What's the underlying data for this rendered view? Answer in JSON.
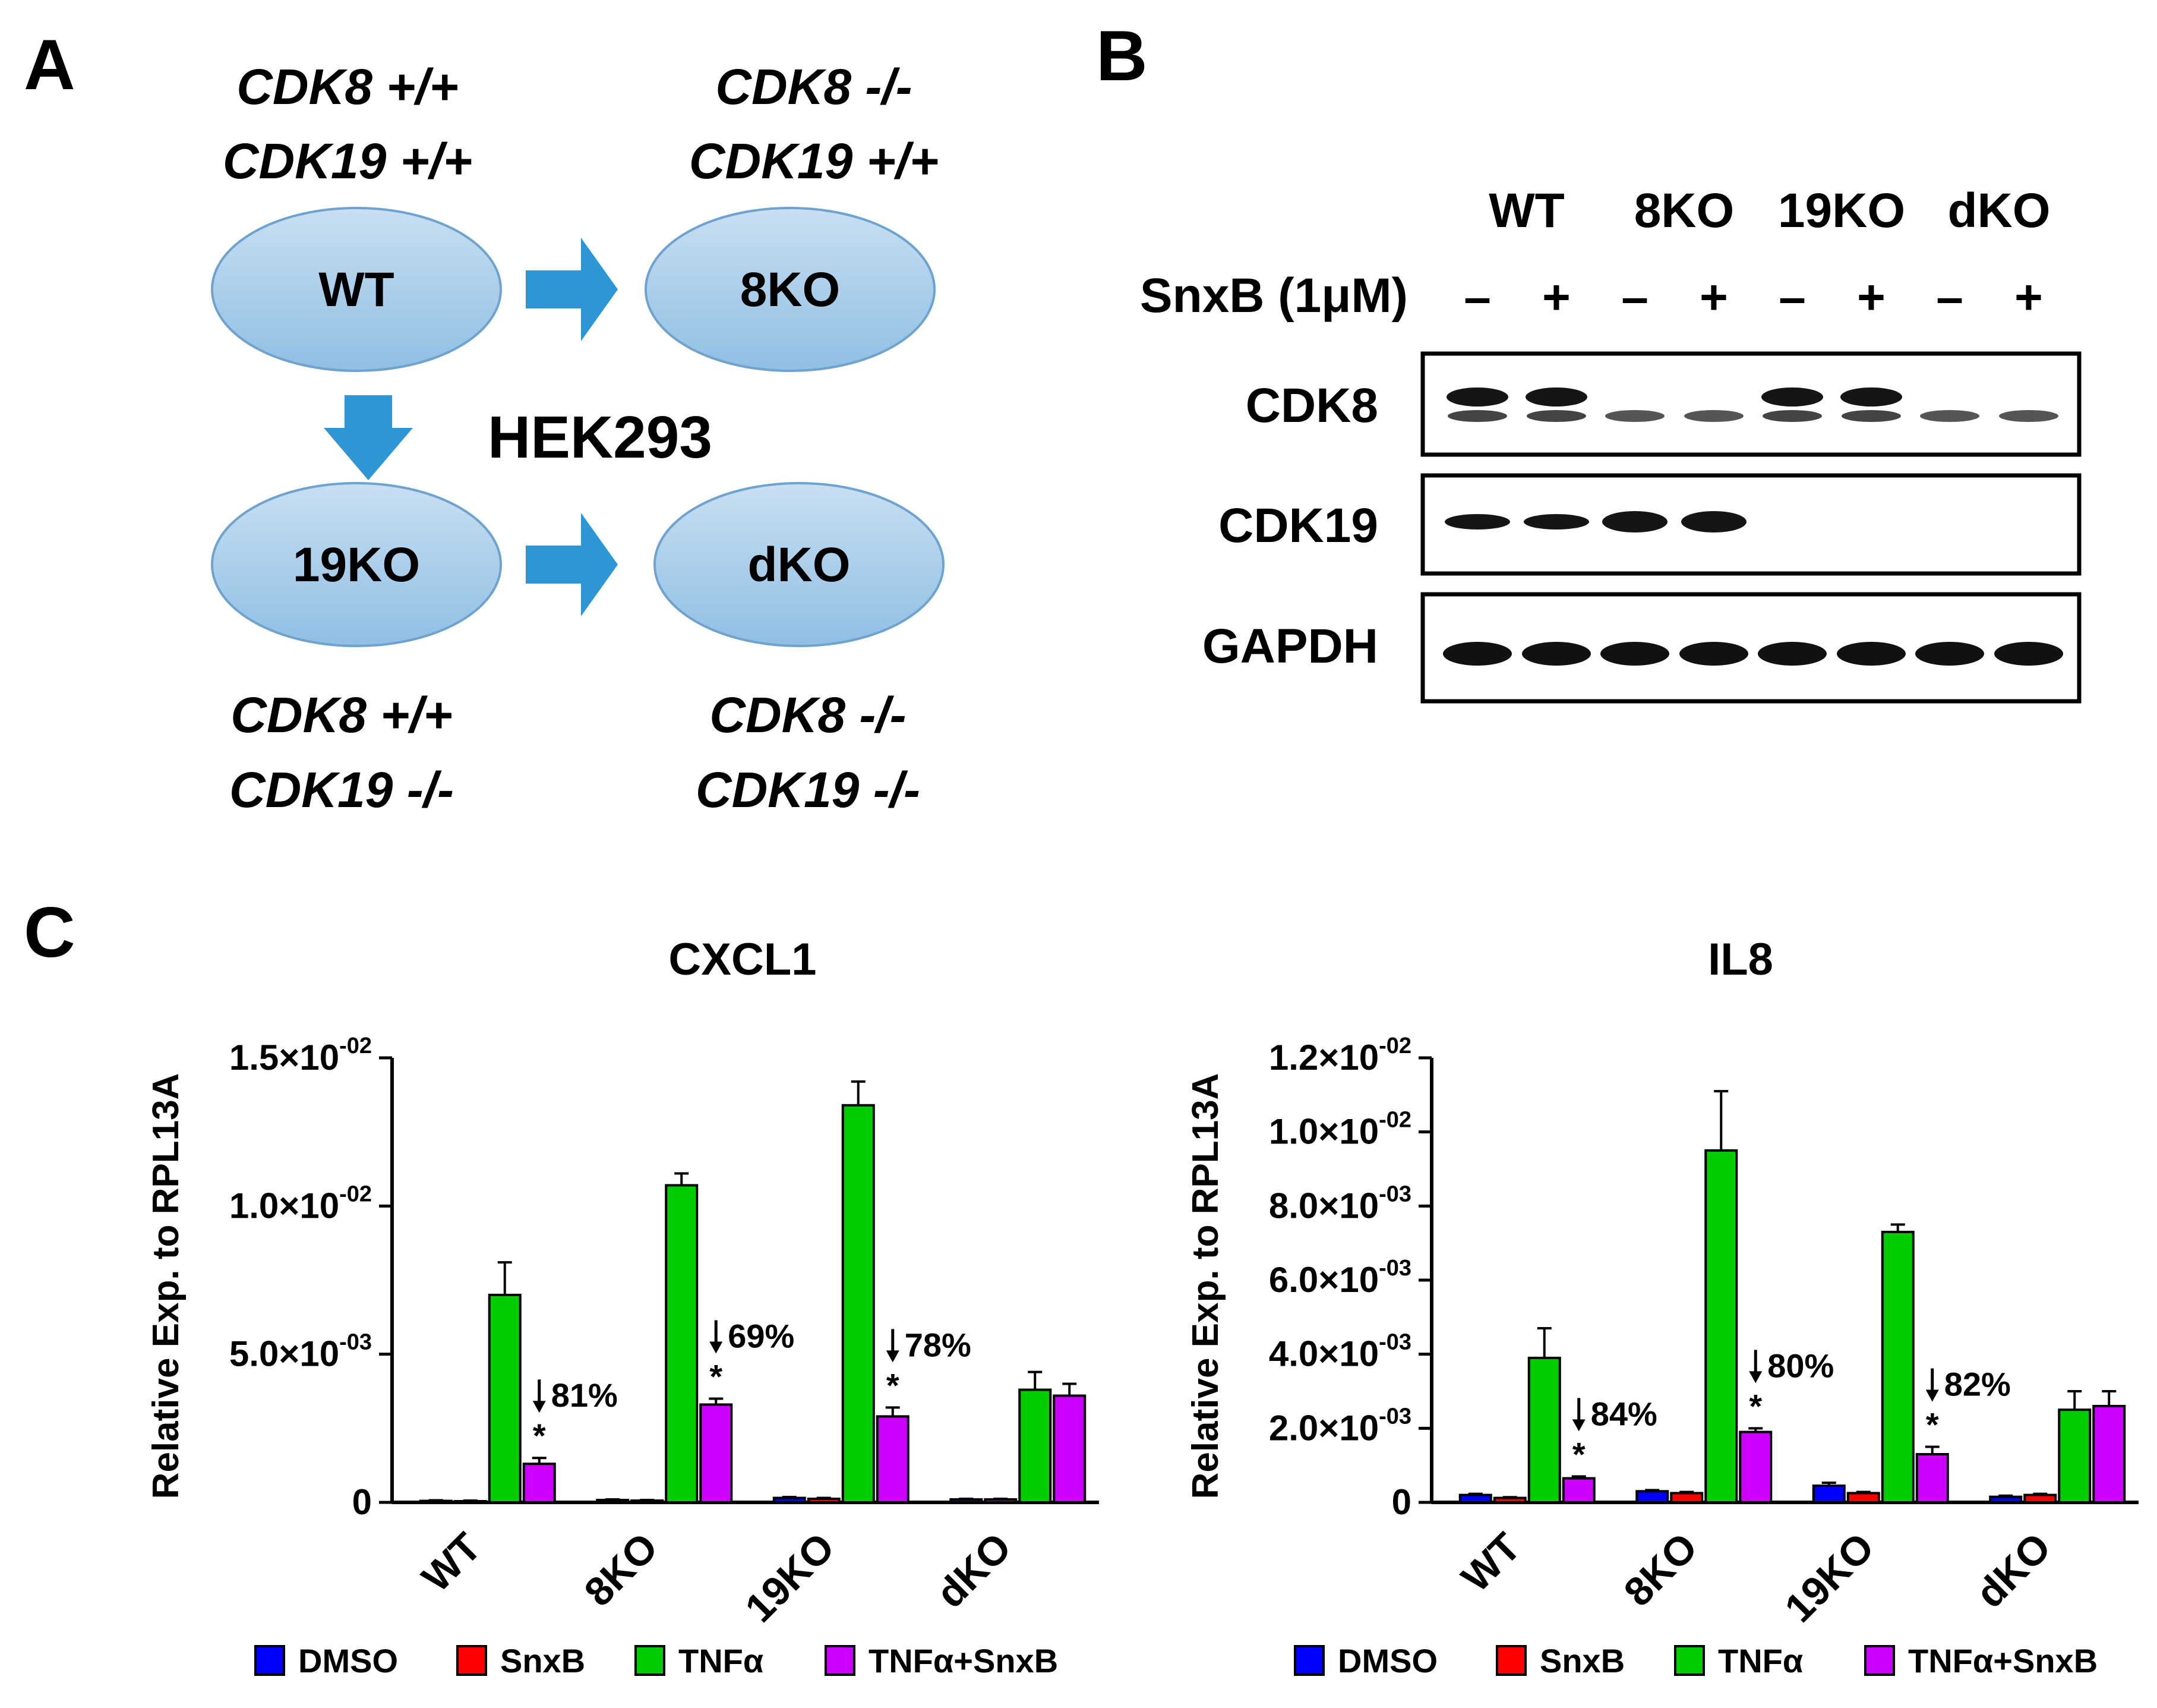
{
  "panel_a": {
    "label": "A",
    "center_label": "HEK293",
    "cells": [
      {
        "name": "WT",
        "cdk8": "CDK8 +/+",
        "cdk19": "CDK19 +/+"
      },
      {
        "name": "8KO",
        "cdk8": "CDK8 -/-",
        "cdk19": "CDK19 +/+"
      },
      {
        "name": "19KO",
        "cdk8": "CDK8 +/+",
        "cdk19": "CDK19 -/-"
      },
      {
        "name": "dKO",
        "cdk8": "CDK8 -/-",
        "cdk19": "CDK19 -/-"
      }
    ],
    "colors": {
      "ellipse_top": "#c9dff2",
      "ellipse_bottom": "#8fbfe4",
      "arrow": "#2f96d6"
    }
  },
  "panel_b": {
    "label": "B",
    "groups": [
      "WT",
      "8KO",
      "19KO",
      "dKO"
    ],
    "treatment_label": "SnxB (1μM)",
    "treatment_signs": [
      "–",
      "+",
      "–",
      "+",
      "–",
      "+",
      "–",
      "+"
    ],
    "blots": [
      {
        "name": "CDK8"
      },
      {
        "name": "CDK19"
      },
      {
        "name": "GAPDH"
      }
    ]
  },
  "panel_c": {
    "label": "C",
    "legend": [
      {
        "name": "DMSO",
        "color": "#0000ff"
      },
      {
        "name": "SnxB",
        "color": "#ff0000"
      },
      {
        "name": "TNFα",
        "color": "#00cc00"
      },
      {
        "name": "TNFα+SnxB",
        "color": "#cc00ff"
      }
    ]
  },
  "chart_data": [
    {
      "type": "bar",
      "title": "CXCL1",
      "ylabel": "Relative Exp. to RPL13A",
      "xlabel": "",
      "ylim": [
        0,
        0.015
      ],
      "y_ticks": [
        {
          "value": 0,
          "mantissa": "0",
          "exponent": ""
        },
        {
          "value": 0.005,
          "mantissa": "5.0×10",
          "exponent": "-03"
        },
        {
          "value": 0.01,
          "mantissa": "1.0×10",
          "exponent": "-02"
        },
        {
          "value": 0.015,
          "mantissa": "1.5×10",
          "exponent": "-02"
        }
      ],
      "categories": [
        "WT",
        "8KO",
        "19KO",
        "dKO"
      ],
      "series": [
        {
          "name": "DMSO",
          "values": [
            5e-05,
            8e-05,
            0.00015,
            0.0001
          ],
          "errors": [
            2e-05,
            2e-05,
            3e-05,
            2e-05
          ]
        },
        {
          "name": "SnxB",
          "values": [
            4e-05,
            6e-05,
            0.00012,
            0.0001
          ],
          "errors": [
            2e-05,
            2e-05,
            3e-05,
            2e-05
          ]
        },
        {
          "name": "TNFα",
          "values": [
            0.007,
            0.0107,
            0.0134,
            0.0038
          ],
          "errors": [
            0.0011,
            0.0004,
            0.0008,
            0.0006
          ]
        },
        {
          "name": "TNFα+SnxB",
          "values": [
            0.0013,
            0.0033,
            0.0029,
            0.0036
          ],
          "errors": [
            0.0002,
            0.0002,
            0.0003,
            0.0004
          ]
        }
      ],
      "annotations": [
        {
          "category": "WT",
          "text": "81%",
          "star": "*"
        },
        {
          "category": "8KO",
          "text": "69%",
          "star": "*"
        },
        {
          "category": "19KO",
          "text": "78%",
          "star": "*"
        }
      ]
    },
    {
      "type": "bar",
      "title": "IL8",
      "ylabel": "Relative Exp. to RPL13A",
      "xlabel": "",
      "ylim": [
        0,
        0.012
      ],
      "y_ticks": [
        {
          "value": 0,
          "mantissa": "0",
          "exponent": ""
        },
        {
          "value": 0.002,
          "mantissa": "2.0×10",
          "exponent": "-03"
        },
        {
          "value": 0.004,
          "mantissa": "4.0×10",
          "exponent": "-03"
        },
        {
          "value": 0.006,
          "mantissa": "6.0×10",
          "exponent": "-03"
        },
        {
          "value": 0.008,
          "mantissa": "8.0×10",
          "exponent": "-03"
        },
        {
          "value": 0.01,
          "mantissa": "1.0×10",
          "exponent": "-02"
        },
        {
          "value": 0.012,
          "mantissa": "1.2×10",
          "exponent": "-02"
        }
      ],
      "categories": [
        "WT",
        "8KO",
        "19KO",
        "dKO"
      ],
      "series": [
        {
          "name": "DMSO",
          "values": [
            0.0002,
            0.0003,
            0.00045,
            0.00015
          ],
          "errors": [
            3e-05,
            3e-05,
            8e-05,
            3e-05
          ]
        },
        {
          "name": "SnxB",
          "values": [
            0.00012,
            0.00025,
            0.00025,
            0.0002
          ],
          "errors": [
            2e-05,
            3e-05,
            3e-05,
            3e-05
          ]
        },
        {
          "name": "TNFα",
          "values": [
            0.0039,
            0.0095,
            0.0073,
            0.0025
          ],
          "errors": [
            0.0008,
            0.0016,
            0.0002,
            0.0005
          ]
        },
        {
          "name": "TNFα+SnxB",
          "values": [
            0.00065,
            0.0019,
            0.0013,
            0.0026
          ],
          "errors": [
            5e-05,
            0.0001,
            0.0002,
            0.0004
          ]
        }
      ],
      "annotations": [
        {
          "category": "WT",
          "text": "84%",
          "star": "*"
        },
        {
          "category": "8KO",
          "text": "80%",
          "star": "*"
        },
        {
          "category": "19KO",
          "text": "82%",
          "star": "*"
        }
      ]
    }
  ]
}
